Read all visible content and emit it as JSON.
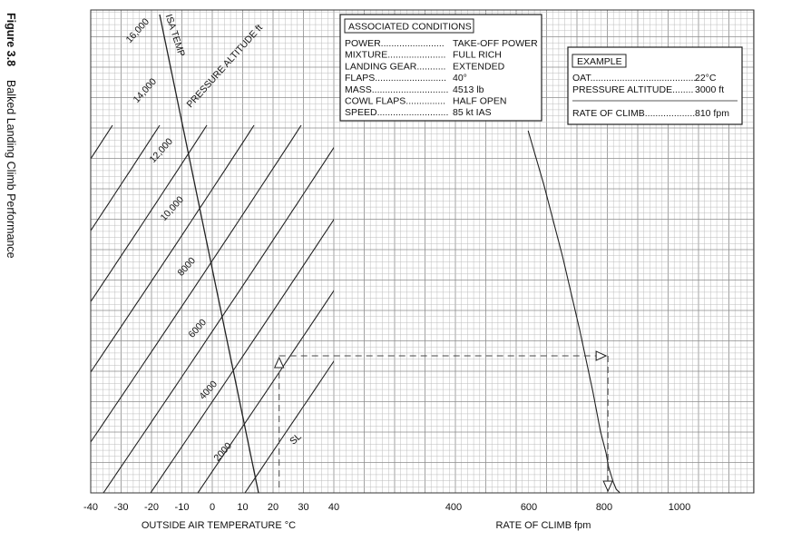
{
  "figure": {
    "number": "Figure 3.8",
    "title": "Balked Landing Climb Performance"
  },
  "chart_data": {
    "type": "line",
    "left_panel": {
      "xlabel": "OUTSIDE AIR TEMPERATURE  °C",
      "xlim": [
        -40,
        40
      ],
      "xticks": [
        -40,
        -30,
        -20,
        -10,
        0,
        10,
        20,
        30,
        40
      ],
      "ylabel_text": "PRESSURE ALTITUDE  ft",
      "ylim": [
        0,
        16000
      ],
      "pressure_altitude_curves": [
        {
          "name": "SL",
          "label": "SL",
          "altitude": 0
        },
        {
          "name": "2000",
          "label": "2000",
          "altitude": 2000
        },
        {
          "name": "4000",
          "label": "4000",
          "altitude": 4000
        },
        {
          "name": "6000",
          "label": "6000",
          "altitude": 6000
        },
        {
          "name": "8000",
          "label": "8000",
          "altitude": 8000
        },
        {
          "name": "10,000",
          "label": "10,000",
          "altitude": 10000
        },
        {
          "name": "12,000",
          "label": "12,000",
          "altitude": 12000
        },
        {
          "name": "14,000",
          "label": "14,000",
          "altitude": 14000
        },
        {
          "name": "16,000",
          "label": "16,000",
          "altitude": 16000
        }
      ],
      "isa_temp_line": {
        "label": "ISA TEMP",
        "points": [
          [
            -17,
            16000
          ],
          [
            15,
            0
          ]
        ]
      }
    },
    "right_panel": {
      "xlabel": "RATE OF CLIMB  fpm",
      "xlim": [
        200,
        1160
      ],
      "xticks": [
        400,
        600,
        800,
        1000
      ],
      "roc_curve": [
        [
          598,
          100
        ],
        [
          640,
          85
        ],
        [
          690,
          65
        ],
        [
          735,
          45
        ],
        [
          770,
          28
        ],
        [
          790,
          17
        ],
        [
          805,
          11
        ],
        [
          812,
          7
        ],
        [
          818,
          5
        ],
        [
          824,
          3
        ],
        [
          832,
          1
        ],
        [
          842,
          0
        ]
      ]
    },
    "example_path": {
      "oat": 22,
      "pressure_altitude": 3000,
      "rate_of_climb": 810
    }
  },
  "associated_conditions": {
    "title": "ASSOCIATED CONDITIONS",
    "rows": [
      {
        "label": "POWER........................",
        "value": "TAKE-OFF POWER"
      },
      {
        "label": "MIXTURE......................",
        "value": "FULL RICH"
      },
      {
        "label": "LANDING GEAR...........",
        "value": "EXTENDED"
      },
      {
        "label": "FLAPS...........................",
        "value": "40°"
      },
      {
        "label": "MASS.............................",
        "value": "4513 lb"
      },
      {
        "label": "COWL FLAPS...............",
        "value": "HALF OPEN"
      },
      {
        "label": "SPEED...........................",
        "value": "85 kt IAS"
      }
    ]
  },
  "example": {
    "title": "EXAMPLE",
    "rows": [
      {
        "label": "OAT........................................",
        "value": "22°C"
      },
      {
        "label": "PRESSURE ALTITUDE........",
        "value": "3000 ft"
      }
    ],
    "result": {
      "label": "RATE OF CLIMB...................",
      "value": "810 fpm"
    }
  }
}
